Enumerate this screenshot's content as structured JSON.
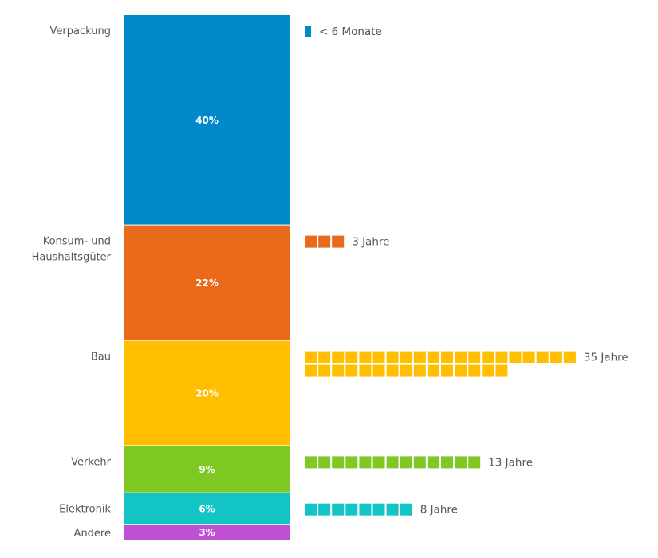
{
  "chart_data": {
    "type": "bar",
    "variant": "stacked-100-percent-with-waffle-lifespan",
    "title": "",
    "xlabel": "",
    "ylabel": "",
    "grid": false,
    "unit": "%",
    "categories": [
      "Verpackung",
      "Konsum- und Haushaltsgüter",
      "Bau",
      "Verkehr",
      "Elektronik",
      "Andere"
    ],
    "category_label_lines": [
      [
        "Verpackung"
      ],
      [
        "Konsum- und",
        "Haushaltsgüter"
      ],
      [
        "Bau"
      ],
      [
        "Verkehr"
      ],
      [
        "Elektronik"
      ],
      [
        "Andere"
      ]
    ],
    "values": [
      40,
      22,
      20,
      9,
      6,
      3
    ],
    "value_labels": [
      "40%",
      "22%",
      "20%",
      "9%",
      "6%",
      "3%"
    ],
    "colors": [
      "#0088c9",
      "#ea6a1c",
      "#ffbf00",
      "#80c823",
      "#13c4c4",
      "#bf4fd4"
    ],
    "lifespan_years": [
      0.5,
      3,
      35,
      13,
      8,
      null
    ],
    "lifespan_labels": [
      "< 6 Monate",
      "3 Jahre",
      "35 Jahre",
      "13 Jahre",
      "8 Jahre",
      ""
    ]
  }
}
